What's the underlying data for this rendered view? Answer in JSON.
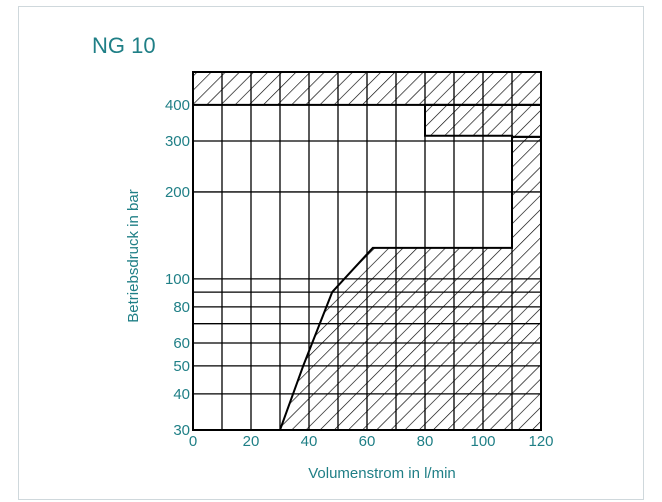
{
  "chart_data": {
    "type": "area",
    "title": "NG 10",
    "xlabel": "Volumenstrom in l/min",
    "ylabel": "Betriebsdruck in bar",
    "x_ticks": [
      0,
      20,
      40,
      60,
      80,
      100,
      120
    ],
    "y_ticks": [
      30,
      40,
      50,
      60,
      80,
      100,
      200,
      300,
      400
    ],
    "xlim": [
      0,
      120
    ],
    "ylim": [
      30,
      520
    ],
    "y_scale": "log",
    "grid": true,
    "hatched_regions": [
      {
        "x": [
          30,
          38,
          48,
          62,
          110,
          110,
          120,
          120
        ],
        "y": [
          30,
          50,
          90,
          128,
          128,
          310,
          310,
          30
        ]
      },
      {
        "x": [
          80,
          120,
          120,
          110,
          110,
          80
        ],
        "y": [
          400,
          400,
          310,
          310,
          313,
          313
        ]
      },
      {
        "x": [
          0,
          120,
          120,
          0
        ],
        "y": [
          520,
          520,
          400,
          400
        ]
      }
    ]
  },
  "colors": {
    "text": "#1f7f86",
    "lines": "#000000"
  }
}
